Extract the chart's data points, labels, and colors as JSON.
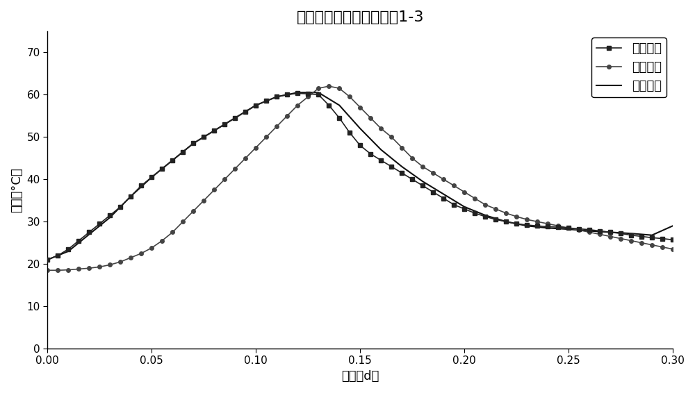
{
  "title": "温度自动化控制系统测试1-3",
  "xlabel": "时间（d）",
  "ylabel": "温度（°C）",
  "xlim": [
    0.0,
    0.3
  ],
  "ylim": [
    0,
    75
  ],
  "yticks": [
    0,
    10,
    20,
    30,
    40,
    50,
    60,
    70
  ],
  "xticks": [
    0.0,
    0.05,
    0.1,
    0.15,
    0.2,
    0.25,
    0.3
  ],
  "surface_temp": {
    "label": "表面温度",
    "color": "#222222",
    "marker": "s",
    "markersize": 4,
    "linewidth": 1.2,
    "x": [
      0.0,
      0.005,
      0.01,
      0.015,
      0.02,
      0.025,
      0.03,
      0.035,
      0.04,
      0.045,
      0.05,
      0.055,
      0.06,
      0.065,
      0.07,
      0.075,
      0.08,
      0.085,
      0.09,
      0.095,
      0.1,
      0.105,
      0.11,
      0.115,
      0.12,
      0.125,
      0.13,
      0.135,
      0.14,
      0.145,
      0.15,
      0.155,
      0.16,
      0.165,
      0.17,
      0.175,
      0.18,
      0.185,
      0.19,
      0.195,
      0.2,
      0.205,
      0.21,
      0.215,
      0.22,
      0.225,
      0.23,
      0.235,
      0.24,
      0.245,
      0.25,
      0.255,
      0.26,
      0.265,
      0.27,
      0.275,
      0.28,
      0.285,
      0.29,
      0.295,
      0.3
    ],
    "y": [
      21.0,
      22.0,
      23.5,
      25.5,
      27.5,
      29.5,
      31.5,
      33.5,
      36.0,
      38.5,
      40.5,
      42.5,
      44.5,
      46.5,
      48.5,
      50.0,
      51.5,
      53.0,
      54.5,
      56.0,
      57.5,
      58.5,
      59.5,
      60.0,
      60.3,
      60.2,
      60.0,
      57.5,
      54.5,
      51.0,
      48.0,
      46.0,
      44.5,
      43.0,
      41.5,
      40.0,
      38.5,
      37.0,
      35.5,
      34.0,
      33.0,
      32.0,
      31.2,
      30.5,
      30.0,
      29.5,
      29.2,
      29.0,
      28.8,
      28.7,
      28.5,
      28.3,
      28.1,
      27.8,
      27.5,
      27.2,
      26.8,
      26.5,
      26.2,
      26.0,
      25.7
    ]
  },
  "center_temp": {
    "label": "中心温度",
    "color": "#444444",
    "marker": "o",
    "markersize": 4,
    "linewidth": 1.2,
    "x": [
      0.0,
      0.005,
      0.01,
      0.015,
      0.02,
      0.025,
      0.03,
      0.035,
      0.04,
      0.045,
      0.05,
      0.055,
      0.06,
      0.065,
      0.07,
      0.075,
      0.08,
      0.085,
      0.09,
      0.095,
      0.1,
      0.105,
      0.11,
      0.115,
      0.12,
      0.125,
      0.13,
      0.135,
      0.14,
      0.145,
      0.15,
      0.155,
      0.16,
      0.165,
      0.17,
      0.175,
      0.18,
      0.185,
      0.19,
      0.195,
      0.2,
      0.205,
      0.21,
      0.215,
      0.22,
      0.225,
      0.23,
      0.235,
      0.24,
      0.245,
      0.25,
      0.255,
      0.26,
      0.265,
      0.27,
      0.275,
      0.28,
      0.285,
      0.29,
      0.295,
      0.3
    ],
    "y": [
      18.5,
      18.5,
      18.6,
      18.8,
      19.0,
      19.3,
      19.8,
      20.5,
      21.5,
      22.5,
      23.8,
      25.5,
      27.5,
      30.0,
      32.5,
      35.0,
      37.5,
      40.0,
      42.5,
      45.0,
      47.5,
      50.0,
      52.5,
      55.0,
      57.5,
      59.5,
      61.5,
      62.0,
      61.5,
      59.5,
      57.0,
      54.5,
      52.0,
      50.0,
      47.5,
      45.0,
      43.0,
      41.5,
      40.0,
      38.5,
      37.0,
      35.5,
      34.0,
      33.0,
      32.0,
      31.2,
      30.5,
      30.0,
      29.5,
      29.0,
      28.5,
      28.0,
      27.5,
      27.0,
      26.5,
      26.0,
      25.5,
      25.0,
      24.5,
      24.0,
      23.5
    ]
  },
  "set_temp": {
    "label": "给定温度",
    "color": "#111111",
    "marker": "none",
    "linewidth": 1.5,
    "x": [
      0.0,
      0.01,
      0.02,
      0.03,
      0.04,
      0.05,
      0.06,
      0.07,
      0.08,
      0.09,
      0.1,
      0.11,
      0.12,
      0.13,
      0.14,
      0.15,
      0.16,
      0.17,
      0.18,
      0.19,
      0.2,
      0.21,
      0.22,
      0.23,
      0.24,
      0.25,
      0.26,
      0.27,
      0.28,
      0.29,
      0.3
    ],
    "y": [
      21.0,
      23.0,
      27.0,
      31.0,
      36.0,
      40.5,
      44.5,
      48.5,
      51.5,
      54.5,
      57.5,
      59.5,
      60.5,
      60.5,
      57.5,
      52.0,
      47.0,
      43.0,
      39.5,
      36.5,
      33.5,
      31.5,
      30.0,
      29.0,
      28.5,
      28.2,
      27.8,
      27.5,
      27.2,
      26.8,
      29.0
    ]
  },
  "background_color": "#ffffff",
  "legend_loc": "upper right",
  "title_fontsize": 16,
  "axis_fontsize": 13,
  "tick_fontsize": 11,
  "legend_fontsize": 13
}
